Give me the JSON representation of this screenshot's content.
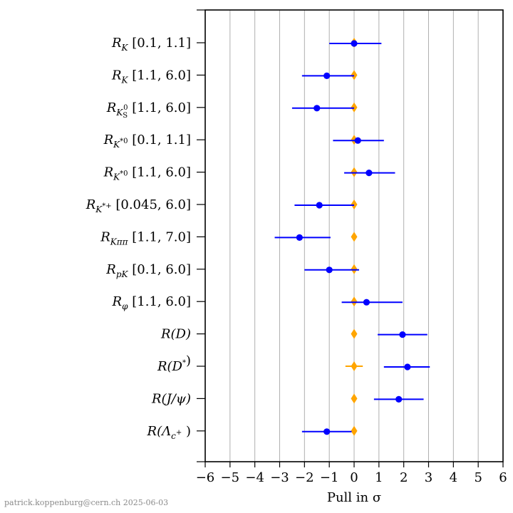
{
  "chart_data": {
    "type": "scatter",
    "title": "",
    "xlabel": "Pull in σ",
    "ylabel": "",
    "xlim": [
      -6,
      6
    ],
    "xticks": [
      -6,
      -5,
      -4,
      -3,
      -2,
      -1,
      0,
      1,
      2,
      3,
      4,
      5,
      6
    ],
    "xtick_labels": [
      "−6",
      "−5",
      "−4",
      "−3",
      "−2",
      "−1",
      "0",
      "1",
      "2",
      "3",
      "4",
      "5",
      "6"
    ],
    "grid": "vertical",
    "legend": "none",
    "series": [
      {
        "color": "#0000ff",
        "marker": "circle"
      },
      {
        "color": "#ffa500",
        "marker": "diamond"
      }
    ],
    "categories": [
      {
        "label": {
          "base": "R",
          "sub": "K",
          "sub2": "",
          "sup": "",
          "range": "[0.1, 1.1]"
        },
        "pull": 0.0,
        "err_lo": 1.0,
        "err_hi": 1.1,
        "ref_err": 0.0
      },
      {
        "label": {
          "base": "R",
          "sub": "K",
          "sub2": "",
          "sup": "",
          "range": "[1.1, 6.0]"
        },
        "pull": -1.1,
        "err_lo": 1.0,
        "err_hi": 1.1,
        "ref_err": 0.0
      },
      {
        "label": {
          "base": "R",
          "sub": "K",
          "sub2": "S",
          "sup": "0",
          "range": "[1.1, 6.0]"
        },
        "pull": -1.5,
        "err_lo": 1.0,
        "err_hi": 1.5,
        "ref_err": 0.0
      },
      {
        "label": {
          "base": "R",
          "sub": "K",
          "sub2": "",
          "sup": "*0",
          "range": "[0.1, 1.1]"
        },
        "pull": 0.15,
        "err_lo": 1.0,
        "err_hi": 1.05,
        "ref_err": 0.0
      },
      {
        "label": {
          "base": "R",
          "sub": "K",
          "sub2": "",
          "sup": "*0",
          "range": "[1.1, 6.0]"
        },
        "pull": 0.6,
        "err_lo": 1.0,
        "err_hi": 1.05,
        "ref_err": 0.0
      },
      {
        "label": {
          "base": "R",
          "sub": "K",
          "sub2": "",
          "sup": "*+",
          "range": "[0.045, 6.0]"
        },
        "pull": -1.4,
        "err_lo": 1.0,
        "err_hi": 1.4,
        "ref_err": 0.0
      },
      {
        "label": {
          "base": "R",
          "sub": "Kππ",
          "sub2": "",
          "sup": "",
          "range": "[1.1, 7.0]"
        },
        "pull": -2.2,
        "err_lo": 1.0,
        "err_hi": 1.25,
        "ref_err": 0.0
      },
      {
        "label": {
          "base": "R",
          "sub": "pK",
          "sub2": "",
          "sup": "",
          "range": "[0.1, 6.0]"
        },
        "pull": -1.0,
        "err_lo": 1.0,
        "err_hi": 1.2,
        "ref_err": 0.0
      },
      {
        "label": {
          "base": "R",
          "sub": "φ",
          "sub2": "",
          "sup": "",
          "range": "[1.1, 6.0]"
        },
        "pull": 0.5,
        "err_lo": 1.0,
        "err_hi": 1.45,
        "ref_err": 0.0
      },
      {
        "label": {
          "base": "R(D)",
          "sub": "",
          "sub2": "",
          "sup": "",
          "range": ""
        },
        "pull": 1.95,
        "err_lo": 1.0,
        "err_hi": 1.0,
        "ref_err": 0.0
      },
      {
        "label": {
          "base": "R(D",
          "sub": "",
          "sub2": "",
          "sup": "*",
          "range": ")"
        },
        "pull": 2.15,
        "err_lo": 0.95,
        "err_hi": 0.9,
        "ref_err": 0.35
      },
      {
        "label": {
          "base": "R(J/ψ)",
          "sub": "",
          "sub2": "",
          "sup": "",
          "range": ""
        },
        "pull": 1.8,
        "err_lo": 1.0,
        "err_hi": 1.0,
        "ref_err": 0.0
      },
      {
        "label": {
          "base": "R(Λ",
          "sub": "c",
          "sub2": "",
          "sup": "+",
          "range": ")"
        },
        "pull": -1.1,
        "err_lo": 1.0,
        "err_hi": 1.0,
        "ref_err": 0.0
      }
    ]
  },
  "footer": {
    "credit": "patrick.koppenburg@cern.ch  2025-06-03"
  }
}
